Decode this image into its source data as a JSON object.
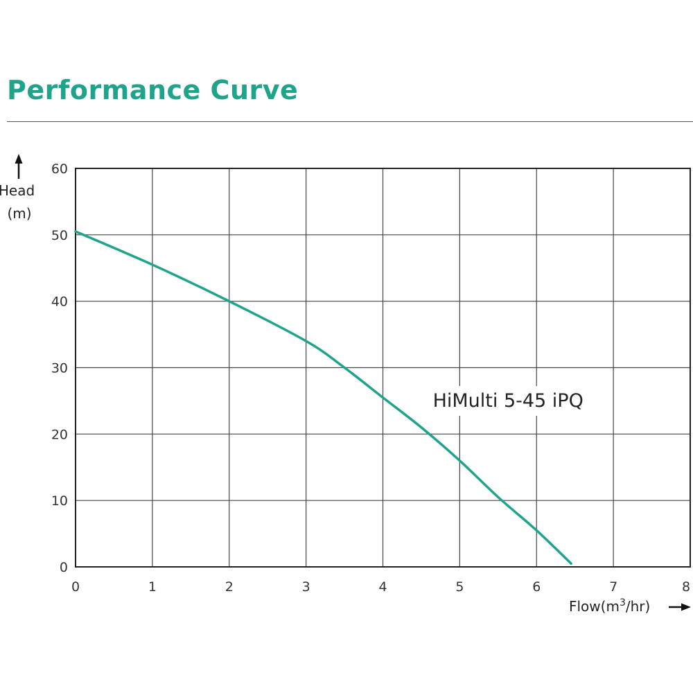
{
  "page": {
    "title": "Performance Curve"
  },
  "chart_data": {
    "type": "line",
    "title": "Performance Curve",
    "xlabel": "Flow(m³/hr)",
    "xlabel_parts": {
      "main": "Flow(m",
      "sup": "3",
      "tail": "/hr)"
    },
    "ylabel": "Head (m)",
    "ylabel_parts": {
      "line1": "Head",
      "line2": "(m)"
    },
    "xlim": [
      0,
      8
    ],
    "ylim": [
      0,
      60
    ],
    "x_ticks": [
      0,
      1,
      2,
      3,
      4,
      5,
      6,
      7,
      8
    ],
    "y_ticks": [
      0,
      10,
      20,
      30,
      40,
      50,
      60
    ],
    "grid": true,
    "series": [
      {
        "name": "HiMulti 5-45 iPQ",
        "color": "#1fa38b",
        "x": [
          0,
          1,
          2,
          3,
          3.5,
          4,
          4.5,
          5,
          5.5,
          6,
          6.45
        ],
        "y": [
          50.5,
          45.5,
          40,
          34,
          30,
          25.5,
          21,
          16,
          10.5,
          5.5,
          0.5
        ]
      }
    ]
  }
}
